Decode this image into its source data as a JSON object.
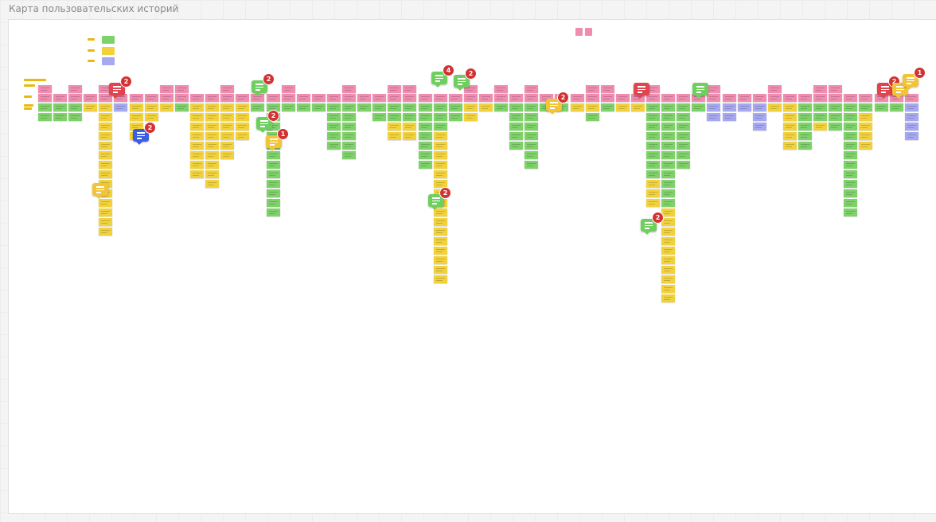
{
  "board": {
    "title": "Карта пользовательских историй"
  },
  "colors": {
    "pink": "#f08cb0",
    "green": "#7fd16a",
    "yellow": "#f2d23c",
    "blue": "#a6a8f0",
    "comment_red": "#e0444e",
    "comment_green": "#6fcf5e",
    "comment_yellow": "#f2c43a",
    "comment_blue": "#3b5fe0"
  },
  "comments": [
    {
      "color": "red",
      "count": "2"
    },
    {
      "color": "blue",
      "count": "2"
    },
    {
      "color": "yellow",
      "count": ""
    },
    {
      "color": "green",
      "count": "2"
    },
    {
      "color": "green",
      "count": "2"
    },
    {
      "color": "yellow",
      "count": "1"
    },
    {
      "color": "green",
      "count": "4"
    },
    {
      "color": "green",
      "count": "2"
    },
    {
      "color": "green",
      "count": "2"
    },
    {
      "color": "yellow",
      "count": "2"
    },
    {
      "color": "red",
      "count": ""
    },
    {
      "color": "green",
      "count": ""
    },
    {
      "color": "green",
      "count": "2"
    },
    {
      "color": "red",
      "count": "2"
    },
    {
      "color": "yellow",
      "count": ""
    },
    {
      "color": "yellow",
      "count": "1"
    }
  ]
}
